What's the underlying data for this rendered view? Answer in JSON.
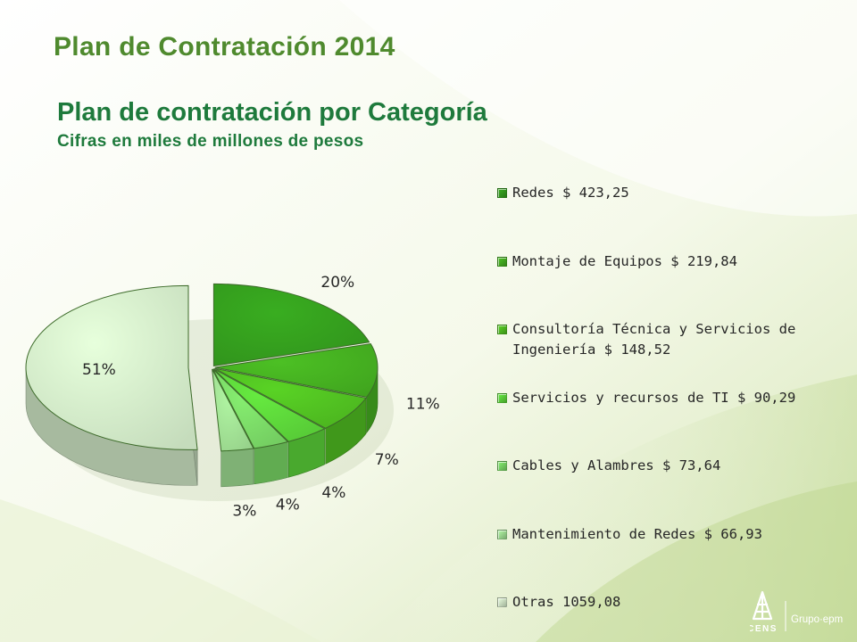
{
  "header": {
    "title": "Plan de Contratación 2014",
    "subtitle": "Plan de contratación por Categoría",
    "caption": "Cifras en miles de millones de pesos"
  },
  "chart_data": {
    "type": "pie",
    "style": "3d-exploded",
    "legend_position": "right",
    "slices": [
      {
        "legend": "Redes $ 423,25",
        "value": 423.25,
        "label": "20%",
        "color": "#35a01e"
      },
      {
        "legend": "Montaje de Equipos $ 219,84",
        "value": 219.84,
        "label": "11%",
        "color": "#46b221"
      },
      {
        "legend": "Consultoría Técnica y Servicios de Ingeniería $ 148,52",
        "value": 148.52,
        "label": "7%",
        "color": "#52c322"
      },
      {
        "legend": "Servicios y recursos de TI $ 90,29",
        "value": 90.29,
        "label": "4%",
        "color": "#5ed93b"
      },
      {
        "legend": "Cables y Alambres $ 73,64",
        "value": 73.64,
        "label": "4%",
        "color": "#7cdc68"
      },
      {
        "legend": "Mantenimiento de Redes $ 66,93",
        "value": 66.93,
        "label": "3%",
        "color": "#a3e396"
      },
      {
        "legend": "Otras 1059,08",
        "value": 1059.08,
        "label": "51%",
        "color": "#d6efcc"
      }
    ]
  },
  "footer": {
    "logo_text": "CENS",
    "group_text": "Grupo·epm"
  }
}
